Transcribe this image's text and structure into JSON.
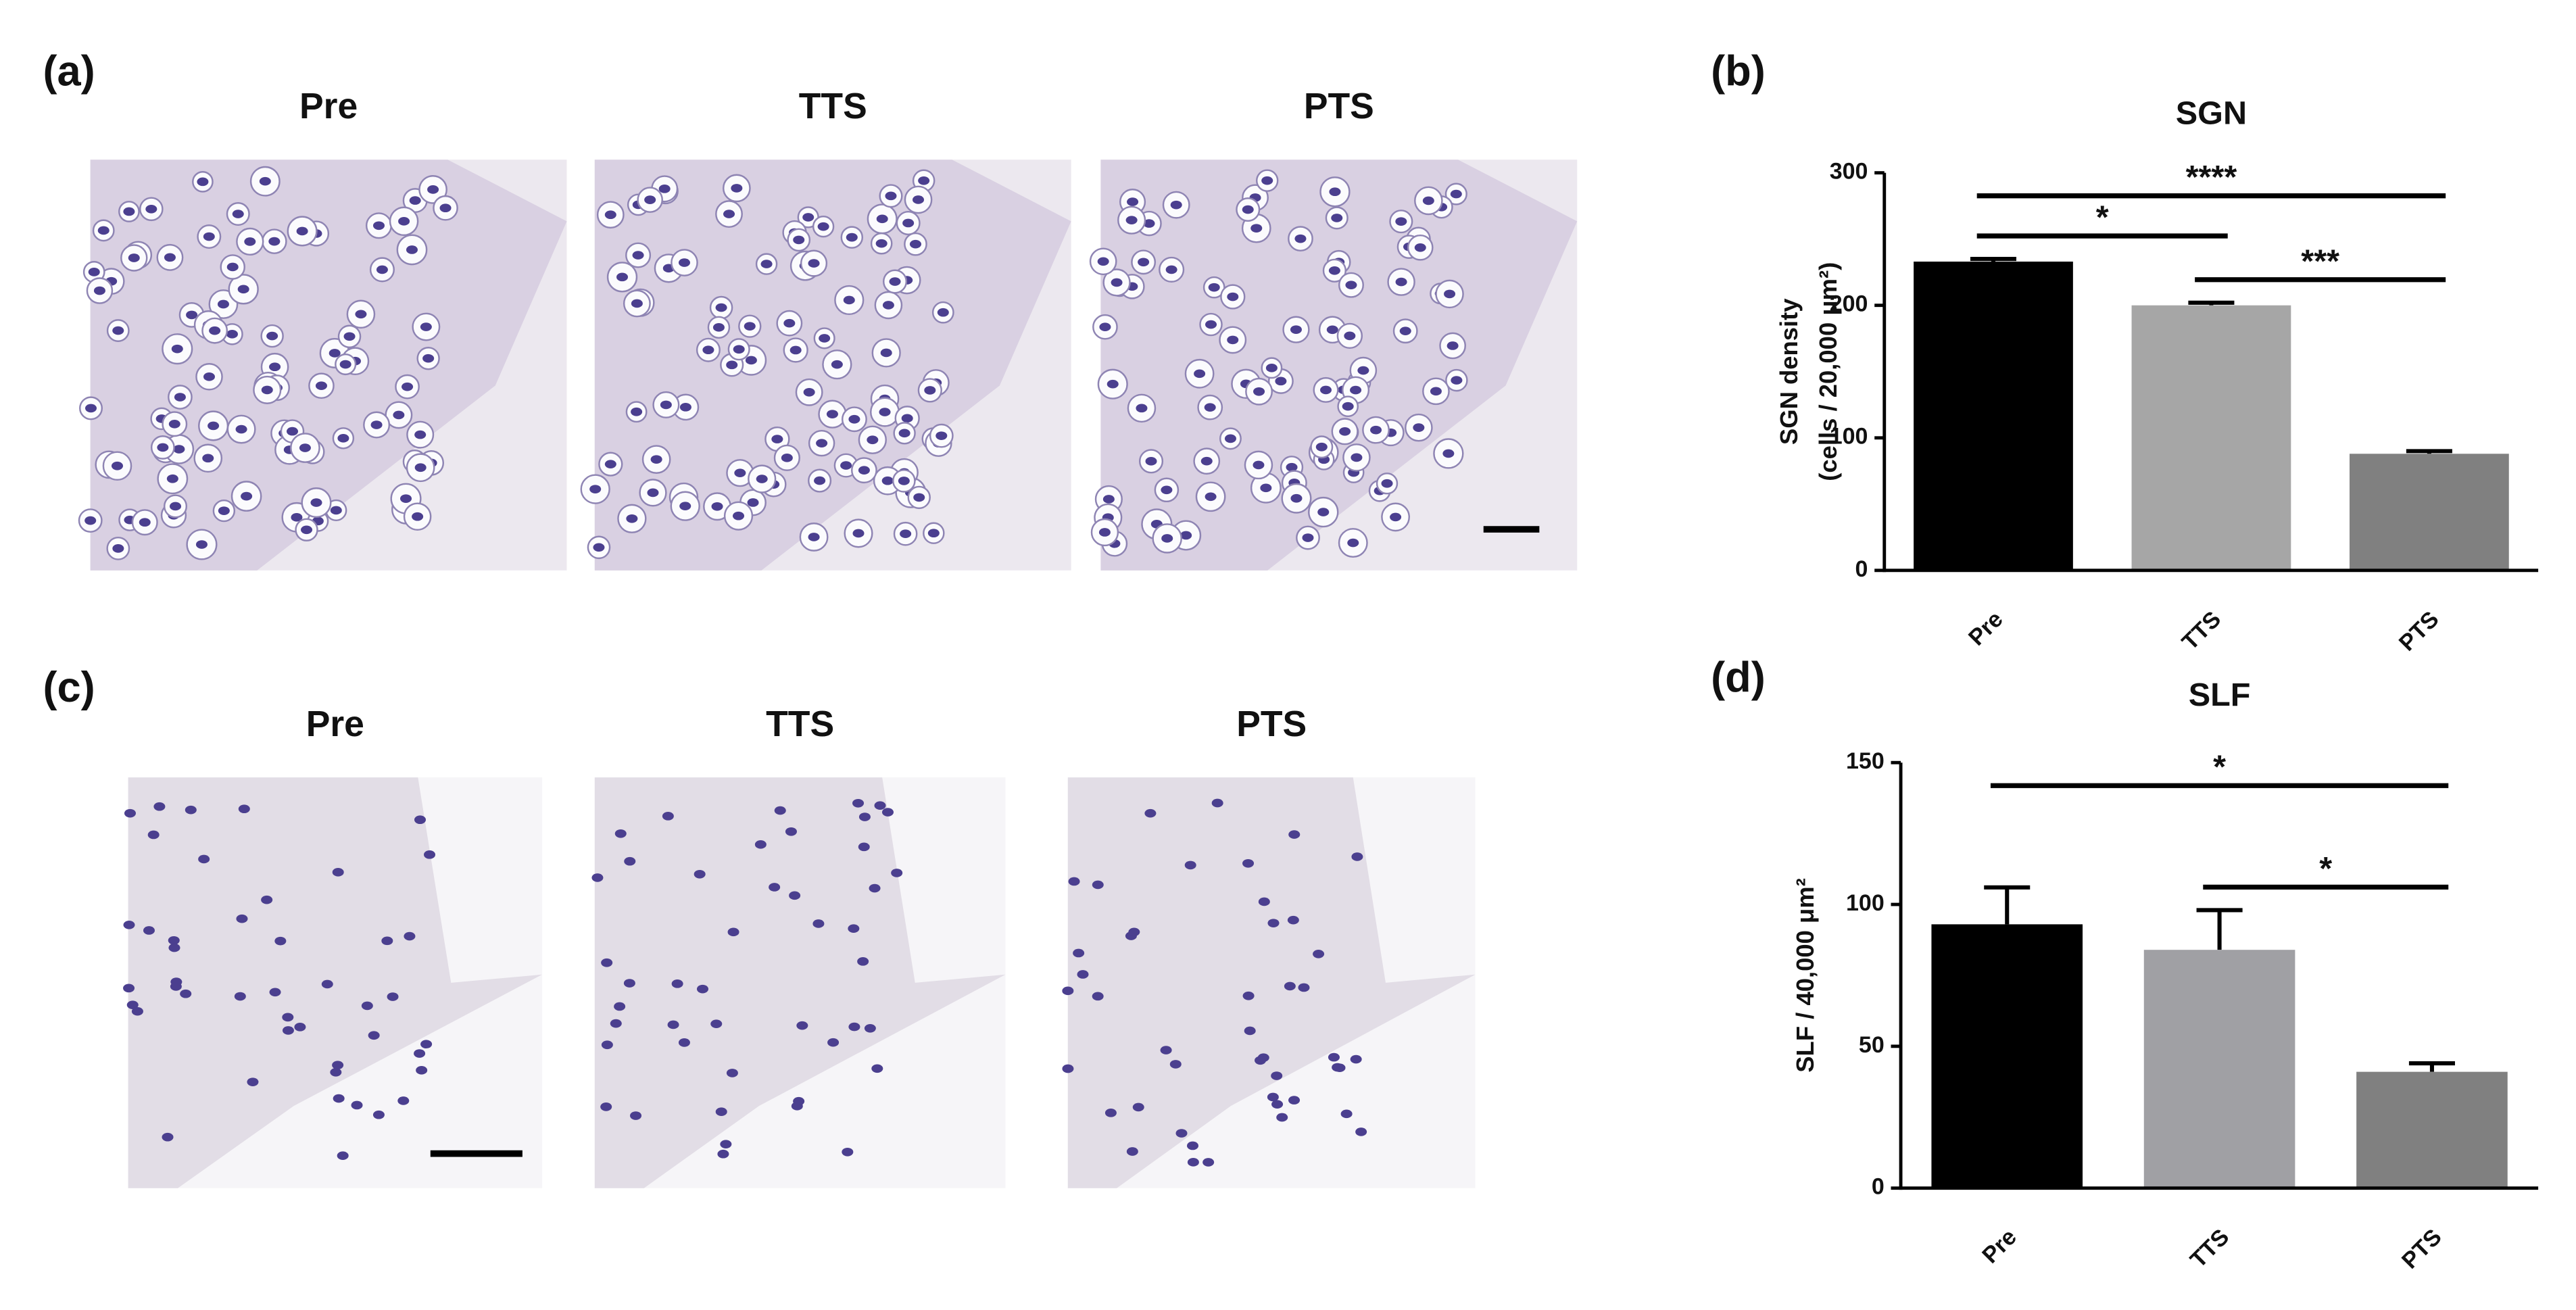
{
  "panels": [
    {
      "label": "(a)",
      "titles": [
        "Pre",
        "TTS",
        "PTS"
      ]
    },
    {
      "label": "(c)",
      "titles": [
        "Pre",
        "TTS",
        "PTS"
      ]
    }
  ],
  "chart_data": [
    {
      "type": "bar",
      "panel_label": "(b)",
      "title": "SGN",
      "ylabel": [
        "SGN density",
        "(cells / 20,000 μm²)"
      ],
      "categories": [
        "Pre",
        "TTS",
        "PTS"
      ],
      "values": [
        233,
        200,
        88
      ],
      "errors": [
        2,
        2,
        2
      ],
      "colors": [
        "#000000",
        "#a6a6a6",
        "#808080"
      ],
      "ylim": [
        0,
        300
      ],
      "yticks": [
        0,
        100,
        200,
        300
      ],
      "annotations": [
        {
          "from": "Pre",
          "to": "PTS",
          "label": "****"
        },
        {
          "from": "Pre",
          "to": "TTS",
          "label": "*"
        },
        {
          "from": "TTS",
          "to": "PTS",
          "label": "***"
        }
      ]
    },
    {
      "type": "bar",
      "panel_label": "(d)",
      "title": "SLF",
      "ylabel": [
        "SLF / 40,000 μm²"
      ],
      "categories": [
        "Pre",
        "TTS",
        "PTS"
      ],
      "values": [
        93,
        84,
        41
      ],
      "errors": [
        13,
        14,
        3
      ],
      "colors": [
        "#000000",
        "#a0a0a4",
        "#808080"
      ],
      "ylim": [
        0,
        150
      ],
      "yticks": [
        0,
        50,
        100,
        150
      ],
      "annotations": [
        {
          "from": "Pre",
          "to": "PTS",
          "label": "*"
        },
        {
          "from": "TTS",
          "to": "PTS",
          "label": "*"
        }
      ]
    }
  ]
}
